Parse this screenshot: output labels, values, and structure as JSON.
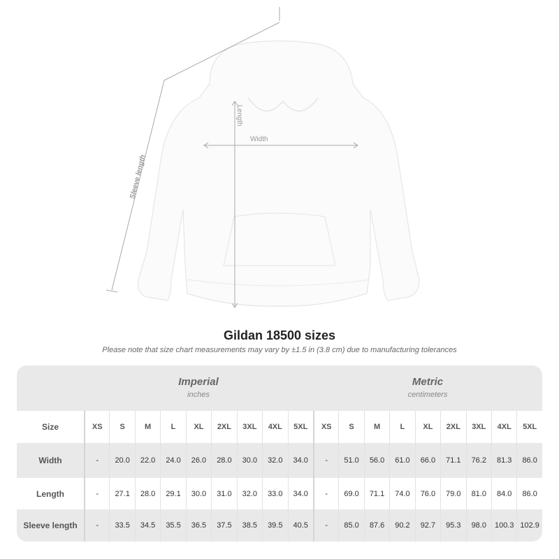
{
  "illustration": {
    "labels": {
      "sleeve": "Sleeve length",
      "length": "Length",
      "width": "Width"
    }
  },
  "title": "Gildan 18500 sizes",
  "note": "Please note that size chart measurements may vary by ±1.5 in (3.8 cm) due to manufacturing tolerances",
  "table": {
    "imperial": {
      "title": "Imperial",
      "unit": "inches"
    },
    "metric": {
      "title": "Metric",
      "unit": "centimeters"
    },
    "size_label": "Size",
    "sizes": [
      "XS",
      "S",
      "M",
      "L",
      "XL",
      "2XL",
      "3XL",
      "4XL",
      "5XL"
    ],
    "rows": [
      {
        "label": "Width",
        "imperial": [
          "-",
          "20.0",
          "22.0",
          "24.0",
          "26.0",
          "28.0",
          "30.0",
          "32.0",
          "34.0"
        ],
        "metric": [
          "-",
          "51.0",
          "56.0",
          "61.0",
          "66.0",
          "71.1",
          "76.2",
          "81.3",
          "86.0"
        ]
      },
      {
        "label": "Length",
        "imperial": [
          "-",
          "27.1",
          "28.0",
          "29.1",
          "30.0",
          "31.0",
          "32.0",
          "33.0",
          "34.0"
        ],
        "metric": [
          "-",
          "69.0",
          "71.1",
          "74.0",
          "76.0",
          "79.0",
          "81.0",
          "84.0",
          "86.0"
        ]
      },
      {
        "label": "Sleeve length",
        "imperial": [
          "-",
          "33.5",
          "34.5",
          "35.5",
          "36.5",
          "37.5",
          "38.5",
          "39.5",
          "40.5"
        ],
        "metric": [
          "-",
          "85.0",
          "87.6",
          "90.2",
          "92.7",
          "95.3",
          "98.0",
          "100.3",
          "102.9"
        ]
      }
    ]
  }
}
